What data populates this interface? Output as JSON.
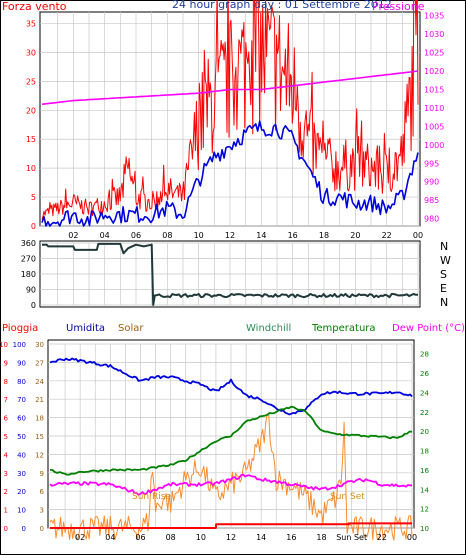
{
  "title": "24 hour graph day : 01 Settembre 2012",
  "colors": {
    "background": "#ffffff",
    "grid": "#c8c8c8",
    "frame": "#000000",
    "wind": "#ff0000",
    "wind2": "#0000dd",
    "pressure": "#ff00ff",
    "direction": "#203838",
    "humidity": "#0000dd",
    "solar": "#ff8c2a",
    "windchill": "#2e8b57",
    "temperature": "#008000",
    "dewpoint": "#ff00ff",
    "rain": "#ff0000",
    "sun_label": "#d98b1a"
  },
  "chart_data": [
    {
      "type": "line",
      "title": "24 hour graph day : 01 Settembre 2012",
      "grid": true,
      "x_ticks": [
        "02",
        "04",
        "06",
        "08",
        "10",
        "12",
        "14",
        "16",
        "18",
        "20",
        "22",
        "00"
      ],
      "left_axis": {
        "label": "Forza vento",
        "ticks": [
          0,
          5,
          10,
          15,
          20,
          25,
          30,
          35
        ],
        "range": [
          0,
          37
        ]
      },
      "right_axis": {
        "label": "Pressione",
        "ticks": [
          980,
          985,
          990,
          995,
          1000,
          1005,
          1010,
          1015,
          1020,
          1025,
          1030,
          1035
        ],
        "range": [
          978,
          1036
        ]
      },
      "series": [
        {
          "name": "Forza vento",
          "axis": "left",
          "hours": [
            0,
            1,
            2,
            3,
            4,
            5,
            5.5,
            6,
            7,
            8,
            9,
            10,
            11,
            12,
            13,
            14,
            15,
            16,
            17,
            18,
            19,
            20,
            21,
            22,
            23,
            23.5,
            24
          ],
          "values": [
            2,
            3,
            4,
            3,
            4,
            5,
            10,
            5,
            4,
            6,
            5,
            18,
            22,
            25,
            28,
            30,
            28,
            24,
            15,
            11,
            10,
            11,
            10,
            9,
            12,
            22,
            35
          ]
        },
        {
          "name": "Vento medio",
          "axis": "left",
          "hours": [
            0,
            1,
            2,
            3,
            4,
            5,
            6,
            7,
            8,
            9,
            10,
            11,
            12,
            13,
            14,
            15,
            16,
            17,
            18,
            19,
            20,
            21,
            22,
            23,
            24
          ],
          "values": [
            1,
            1,
            2,
            1,
            2,
            2,
            2,
            2,
            3,
            2,
            8,
            12,
            14,
            16,
            17,
            17,
            15,
            10,
            5,
            5,
            4,
            4,
            3,
            5,
            13
          ]
        },
        {
          "name": "Pressione",
          "axis": "right",
          "hours": [
            0,
            2,
            4,
            6,
            8,
            10,
            12,
            14,
            16,
            18,
            20,
            22,
            24
          ],
          "values": [
            1011,
            1012,
            1012.5,
            1013,
            1013.5,
            1014,
            1015,
            1015,
            1016,
            1017,
            1018,
            1019,
            1020
          ]
        }
      ]
    },
    {
      "type": "line",
      "grid": true,
      "direction_labels": [
        "N",
        "W",
        "S",
        "E",
        "N"
      ],
      "left_axis": {
        "ticks": [
          0,
          90,
          180,
          270,
          360
        ],
        "range": [
          0,
          360
        ]
      },
      "series": [
        {
          "name": "Direzione vento",
          "hours": [
            0,
            0.3,
            0.4,
            2,
            2.1,
            3.5,
            3.6,
            5,
            5.2,
            5.5,
            6,
            6.5,
            7,
            7.1,
            7.2,
            24
          ],
          "values": [
            350,
            350,
            340,
            340,
            320,
            320,
            355,
            355,
            300,
            330,
            350,
            340,
            350,
            0,
            55,
            60
          ]
        }
      ]
    },
    {
      "type": "line",
      "grid": true,
      "x_ticks": [
        "02",
        "04",
        "06",
        "08",
        "10",
        "12",
        "14",
        "16",
        "18",
        "Sun Set",
        "22",
        "00"
      ],
      "annotations": [
        "Sun Rise",
        "Sun Set"
      ],
      "axes": [
        {
          "label": "Pioggia",
          "ticks": [
            0,
            1,
            2,
            3,
            4,
            5,
            6,
            7,
            8,
            9,
            10
          ]
        },
        {
          "label": "Umidita",
          "ticks": [
            0,
            10,
            20,
            30,
            40,
            50,
            60,
            70,
            80,
            90,
            100
          ]
        },
        {
          "label": "Solar",
          "ticks": [
            0,
            3,
            6,
            9,
            12,
            15,
            18,
            21,
            24,
            27,
            30
          ]
        },
        {
          "label": "Dew Point (°C)",
          "ticks": [
            10,
            12,
            14,
            16,
            18,
            20,
            22,
            24,
            26,
            28
          ]
        }
      ],
      "legend": [
        "Pioggia",
        "Umidita",
        "Solar",
        "Windchill",
        "Temperatura",
        "Dew Point (°C)"
      ],
      "series": [
        {
          "name": "Umidita",
          "hours": [
            0,
            1,
            2,
            4,
            5,
            6,
            7,
            8,
            9,
            10,
            11,
            12,
            13,
            14,
            15,
            16,
            17,
            18,
            19,
            20,
            22,
            23,
            24
          ],
          "values": [
            90,
            92,
            91,
            88,
            84,
            80,
            82,
            82,
            80,
            78,
            74,
            80,
            72,
            70,
            65,
            62,
            65,
            73,
            74,
            73,
            73,
            74,
            72
          ]
        },
        {
          "name": "Temperatura",
          "hours": [
            0,
            1,
            2,
            4,
            6,
            8,
            9,
            10,
            11,
            12,
            13,
            14,
            15,
            16,
            17,
            18,
            19,
            20,
            22,
            23,
            24
          ],
          "values": [
            16,
            15.5,
            15.8,
            16,
            16,
            16.5,
            17,
            18,
            19,
            19.5,
            21,
            21.5,
            22,
            22.5,
            22,
            20,
            19.7,
            19.6,
            19.4,
            19.3,
            20
          ]
        },
        {
          "name": "Dew Point (°C)",
          "hours": [
            0,
            2,
            4,
            5,
            6,
            7,
            8,
            9,
            10,
            11,
            12,
            13,
            14,
            15,
            16,
            17,
            18,
            19,
            20,
            21,
            22,
            23,
            24
          ],
          "values": [
            14.5,
            14.6,
            14.5,
            14,
            13.5,
            14,
            14.5,
            14.5,
            14.5,
            14.6,
            15,
            15.5,
            15,
            14.8,
            14.5,
            14.2,
            14,
            14.3,
            14.8,
            15,
            14.5,
            14.4,
            14.3
          ]
        },
        {
          "name": "Solar",
          "hours": [
            0,
            6,
            6.5,
            6.8,
            7,
            7.5,
            8,
            9,
            10,
            11,
            12,
            13,
            14,
            14.5,
            15,
            16,
            17,
            18,
            19,
            19.3,
            19.5,
            19.7,
            20,
            24
          ],
          "values": [
            0,
            0,
            1,
            10,
            3,
            5,
            4,
            8,
            10,
            5,
            7,
            9,
            14,
            18,
            8,
            7,
            5,
            2,
            5,
            8,
            16,
            0,
            0,
            0
          ]
        },
        {
          "name": "Pioggia",
          "hours": [
            0,
            11,
            11.01,
            19.8,
            19.81,
            24
          ],
          "values": [
            0,
            0,
            0.2,
            0.2,
            0.25,
            0.25
          ]
        }
      ]
    }
  ]
}
